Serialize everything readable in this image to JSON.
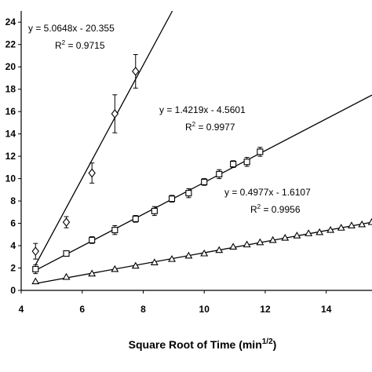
{
  "chart_data": {
    "type": "scatter",
    "title": "",
    "xlabel": "Square Root of Time (min",
    "xlabel_sup": "1/2",
    "xlabel_close": ")",
    "ylabel": "",
    "xlim": [
      4,
      15.5
    ],
    "ylim": [
      0,
      25
    ],
    "x_ticks": [
      "4",
      "6",
      "8",
      "10",
      "12",
      "14"
    ],
    "y_ticks": [
      "0",
      "2",
      "4",
      "6",
      "8",
      "10",
      "12",
      "14",
      "16",
      "18",
      "20",
      "22",
      "24"
    ],
    "grid": false,
    "legend": "none",
    "series": [
      {
        "marker": "diamond",
        "x": [
          4.47,
          5.48,
          6.32,
          7.07,
          7.75
        ],
        "y": [
          3.5,
          6.1,
          10.5,
          15.8,
          19.6
        ],
        "err": [
          0.7,
          0.5,
          0.9,
          1.7,
          1.5
        ],
        "fit": {
          "slope": 5.0648,
          "intercept": -20.355,
          "x_end": 15.5
        },
        "equation": "y = 5.0648x - 20.355",
        "r2_label": "R",
        "r2_sup": "2",
        "r2_value": " = 0.9715"
      },
      {
        "marker": "square",
        "x": [
          4.47,
          5.48,
          6.32,
          7.07,
          7.75,
          8.37,
          8.94,
          9.49,
          10.0,
          10.49,
          10.95,
          11.4,
          11.83
        ],
        "y": [
          1.9,
          3.3,
          4.5,
          5.4,
          6.4,
          7.1,
          8.2,
          8.7,
          9.7,
          10.4,
          11.3,
          11.5,
          12.4
        ],
        "err": [
          0.4,
          0.2,
          0.3,
          0.4,
          0.3,
          0.4,
          0.3,
          0.4,
          0.3,
          0.4,
          0.3,
          0.4,
          0.4
        ],
        "fit": {
          "slope": 1.4219,
          "intercept": -4.5601,
          "x_end": 15.5
        },
        "equation": "y = 1.4219x - 4.5601",
        "r2_label": "R",
        "r2_sup": "2",
        "r2_value": " = 0.9977"
      },
      {
        "marker": "triangle",
        "x": [
          4.47,
          5.48,
          6.32,
          7.07,
          7.75,
          8.37,
          8.94,
          9.49,
          10.0,
          10.49,
          10.95,
          11.4,
          11.83,
          12.25,
          12.65,
          13.04,
          13.42,
          13.78,
          14.14,
          14.49,
          14.83,
          15.17,
          15.49
        ],
        "y": [
          0.8,
          1.2,
          1.5,
          1.9,
          2.2,
          2.5,
          2.8,
          3.1,
          3.3,
          3.6,
          3.9,
          4.1,
          4.3,
          4.5,
          4.7,
          4.9,
          5.1,
          5.2,
          5.4,
          5.6,
          5.8,
          5.9,
          6.1
        ],
        "err": [
          0.1,
          0.1,
          0.1,
          0.1,
          0.1,
          0.1,
          0.1,
          0.1,
          0.1,
          0.1,
          0.1,
          0.1,
          0.1,
          0.1,
          0.1,
          0.1,
          0.1,
          0.1,
          0.1,
          0.1,
          0.1,
          0.1,
          0.1
        ],
        "fit": {
          "slope": 0.4977,
          "intercept": -1.6107,
          "x_end": 15.5
        },
        "equation": "y = 0.4977x - 1.6107",
        "r2_label": "R",
        "r2_sup": "2",
        "r2_value": " = 0.9956"
      }
    ]
  }
}
